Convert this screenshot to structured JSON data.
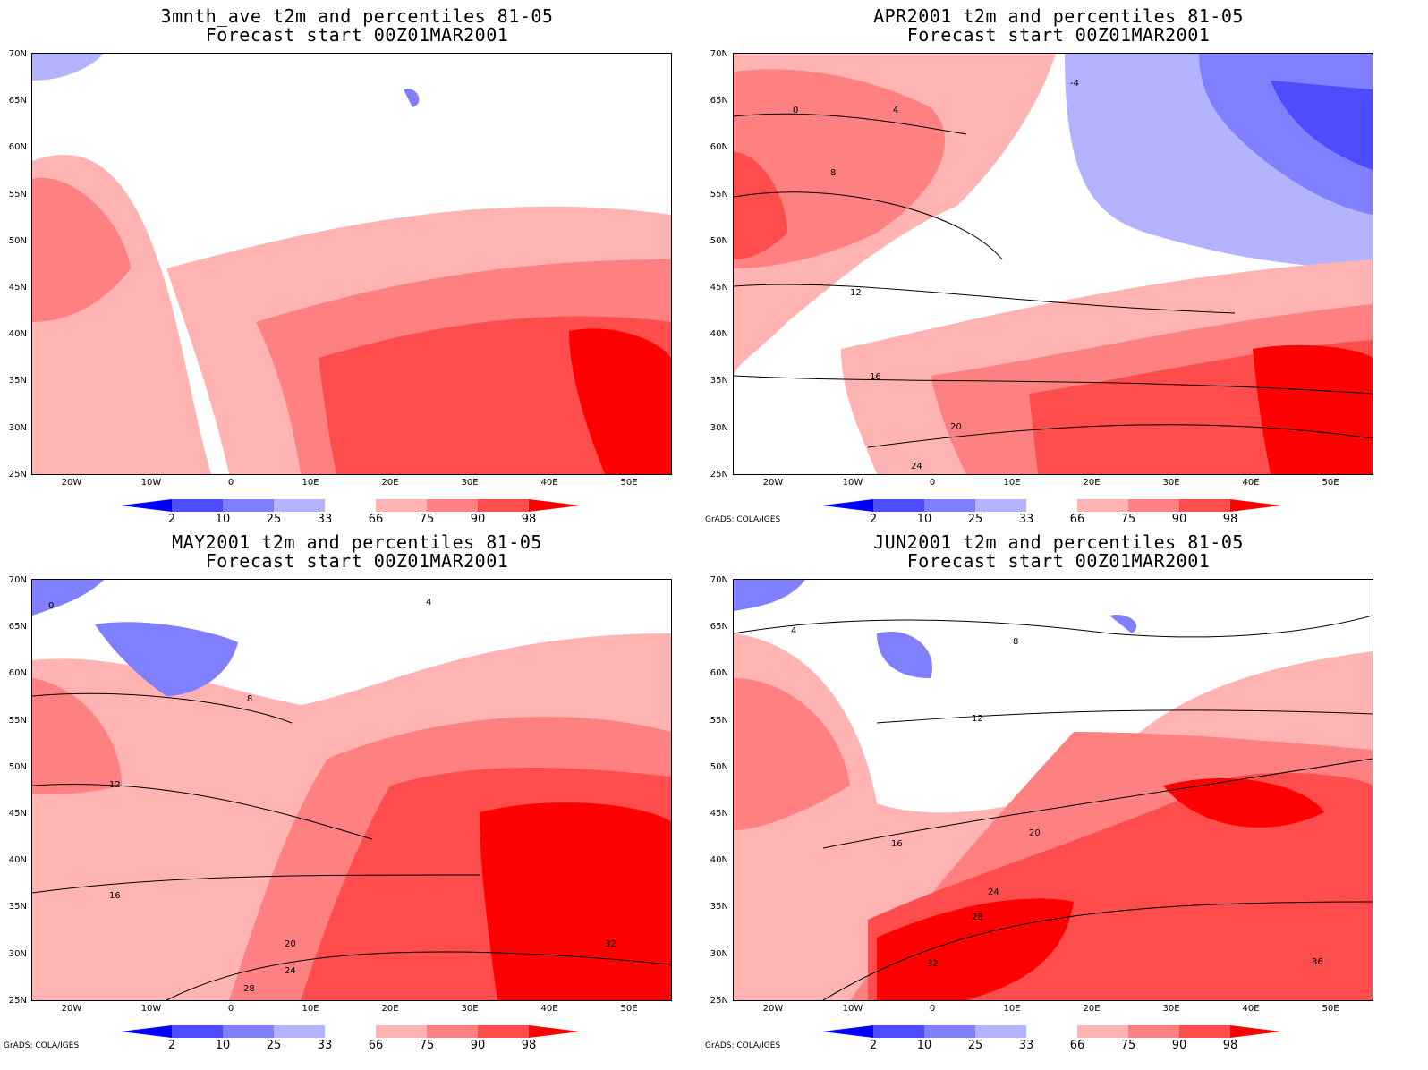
{
  "colors": {
    "blue_98": "#0000ff",
    "blue_90": "#4d4dff",
    "blue_75": "#8080ff",
    "blue_66": "#b3b3ff",
    "red_66": "#ffb3b3",
    "red_75": "#ff8080",
    "red_90": "#ff4d4d",
    "red_98": "#ff0000",
    "coast": "#1ec8c8",
    "contour": "#000000"
  },
  "axes": {
    "y_ticks": [
      "70N",
      "65N",
      "60N",
      "55N",
      "50N",
      "45N",
      "40N",
      "35N",
      "30N",
      "25N"
    ],
    "x_ticks": [
      "20W",
      "10W",
      "0",
      "10E",
      "20E",
      "30E",
      "40E",
      "50E"
    ]
  },
  "colorbar": {
    "labels": [
      "2",
      "10",
      "25",
      "33",
      "66",
      "75",
      "90",
      "98"
    ]
  },
  "credit": "GrADS: COLA/IGES",
  "panels": [
    {
      "title": "3mnth_ave t2m and percentiles 81-05",
      "subtitle": "Forecast start 00Z01MAR2001"
    },
    {
      "title": "APR2001 t2m and percentiles 81-05",
      "subtitle": "Forecast start 00Z01MAR2001"
    },
    {
      "title": "MAY2001 t2m and percentiles 81-05",
      "subtitle": "Forecast start 00Z01MAR2001"
    },
    {
      "title": "JUN2001 t2m and percentiles 81-05",
      "subtitle": "Forecast start 00Z01MAR2001"
    }
  ],
  "contour_labels": {
    "apr": [
      "0",
      "-4",
      "4",
      "8",
      "12",
      "16",
      "20",
      "24"
    ],
    "may": [
      "0",
      "4",
      "8",
      "12",
      "16",
      "20",
      "24",
      "28",
      "32"
    ],
    "jun": [
      "4",
      "8",
      "12",
      "16",
      "20",
      "24",
      "28",
      "32",
      "36"
    ]
  }
}
